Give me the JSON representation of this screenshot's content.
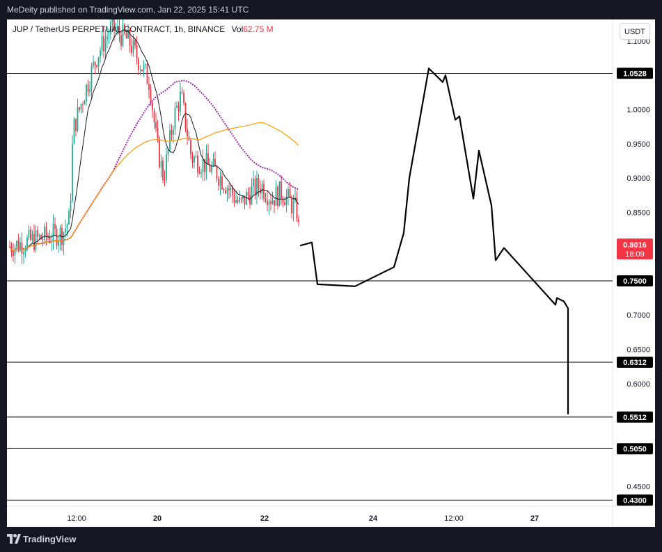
{
  "header": {
    "published_text": "MeDeity published on TradingView.com, Jan 22, 2025 15:41 UTC"
  },
  "legend": {
    "symbol": "JUP / TetherUS PERPETUAL CONTRACT, 1h, BINANCE",
    "vol_label": "Vol",
    "vol_value": "62.75 M"
  },
  "currency_button": "USDT",
  "footer": {
    "brand": "TradingView"
  },
  "chart_data": {
    "type": "line",
    "title": "JUP / TetherUS PERPETUAL CONTRACT, 1h, BINANCE",
    "y_axis": {
      "ticks": [
        "1.1000",
        "1.0000",
        "0.9500",
        "0.9000",
        "0.8500",
        "0.7000",
        "0.6500",
        "0.6000",
        "0.4500"
      ],
      "tick_values": [
        1.1,
        1.0,
        0.95,
        0.9,
        0.85,
        0.7,
        0.65,
        0.6,
        0.45
      ],
      "ylim": [
        0.42,
        1.12
      ]
    },
    "x_axis": {
      "ticks": [
        "12:00",
        "20",
        "22",
        "24",
        "12:00",
        "27"
      ]
    },
    "horizontal_levels": [
      {
        "label": "1.0528",
        "value": 1.0528
      },
      {
        "label": "0.7500",
        "value": 0.75
      },
      {
        "label": "0.6312",
        "value": 0.6312
      },
      {
        "label": "0.5512",
        "value": 0.5512
      },
      {
        "label": "0.5050",
        "value": 0.505
      },
      {
        "label": "0.4300",
        "value": 0.43
      }
    ],
    "current_price": {
      "label": "0.8016",
      "countdown": "18:09",
      "value": 0.8016,
      "color": "#f23645"
    },
    "colors": {
      "up": "#22ab94",
      "down": "#f23645",
      "ma_black": "#131722",
      "ma_purple": "#9c27b0",
      "ma_orange": "#ff9800",
      "projection": "#000000"
    },
    "projection_path": [
      [
        0.8016,
        0.806
      ],
      [
        0.745,
        0.742
      ],
      [
        0.77,
        0.82
      ],
      [
        0.9,
        0.98
      ],
      [
        1.06,
        1.04
      ],
      [
        1.05,
        0.985
      ],
      [
        0.99,
        0.87
      ],
      [
        0.94,
        0.86
      ],
      [
        0.78,
        0.798
      ],
      [
        0.715,
        0.725
      ],
      [
        0.72,
        0.71
      ],
      [
        0.607,
        0.556
      ]
    ],
    "candles_summary": {
      "start_price": 0.81,
      "peak_price": 1.13,
      "end_price": 0.8016
    }
  }
}
